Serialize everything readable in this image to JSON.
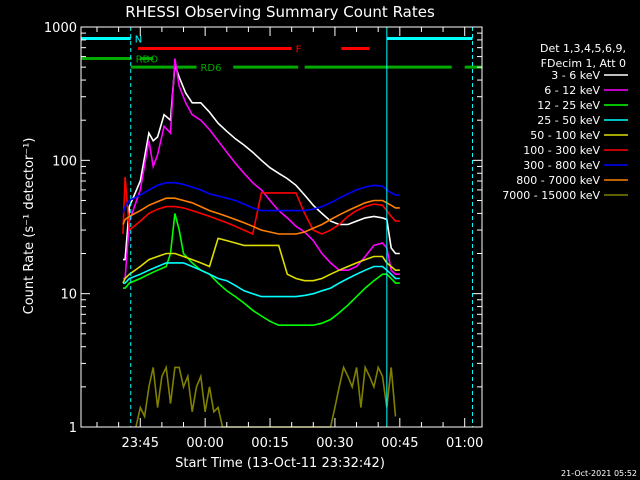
{
  "chart_data": {
    "type": "line",
    "title": "RHESSI Observing Summary Count Rates",
    "xlabel": "Start Time (13-Oct-11 23:32:42)",
    "ylabel": "Count Rate (s⁻¹ detector⁻¹)",
    "footer": "21-Oct-2021 05:52",
    "yscale": "log",
    "ylim": [
      1,
      1000
    ],
    "xlim_minutes": [
      -13.7,
      79.0
    ],
    "x_unit": "minutes after 23:45",
    "xticks": [
      {
        "label": "23:45",
        "value": 0
      },
      {
        "label": "00:00",
        "value": 15
      },
      {
        "label": "00:15",
        "value": 30
      },
      {
        "label": "00:30",
        "value": 45
      },
      {
        "label": "00:45",
        "value": 60
      },
      {
        "label": "01:00",
        "value": 75
      }
    ],
    "yticks": [
      {
        "label": "1",
        "value": 1
      },
      {
        "label": "10",
        "value": 10
      },
      {
        "label": "100",
        "value": 100
      },
      {
        "label": "1000",
        "value": 1000
      }
    ],
    "legend": {
      "placement": "right",
      "header": [
        "Det 1,3,4,5,6,9,",
        "FDecim 1, Att 0"
      ]
    },
    "flags": [
      {
        "name": "N",
        "color": "#00ffff",
        "y": 820,
        "segments": [
          [
            -13.7,
            -2.2
          ],
          [
            57.0,
            76.8
          ]
        ]
      },
      {
        "name": "F",
        "color": "#ff0000",
        "y": 690,
        "segments": [
          [
            -0.5,
            35.0
          ],
          [
            46.5,
            53.0
          ]
        ]
      },
      {
        "name": "RDO",
        "color": "#00aa00",
        "y": 580,
        "segments": [
          [
            -13.7,
            -2.0
          ],
          [
            0.0,
            3.0
          ]
        ]
      },
      {
        "name": "RD6",
        "color": "#00aa00",
        "y": 500,
        "segments": [
          [
            -2.2,
            13.0
          ],
          [
            21.5,
            36.5
          ],
          [
            38.0,
            72.0
          ],
          [
            75.0,
            79.0
          ]
        ]
      }
    ],
    "vlines": [
      {
        "x": -13.7,
        "color": "#00ffff",
        "style": "solid"
      },
      {
        "x": -2.2,
        "color": "#00ffff",
        "style": "dashed"
      },
      {
        "x": 57.0,
        "color": "#00ffff",
        "style": "solid"
      },
      {
        "x": 76.8,
        "color": "#00ffff",
        "style": "dashed"
      }
    ],
    "series": [
      {
        "name": "3 - 6 keV",
        "color": "#ffffff",
        "x": [
          -4,
          -3.5,
          -2.5,
          0,
          2,
          3,
          4,
          5.5,
          7,
          8,
          9,
          10.5,
          12,
          14,
          16,
          18,
          20,
          22,
          24,
          26,
          28,
          30,
          32,
          34,
          36,
          38,
          40,
          42,
          44,
          46,
          48,
          50,
          52,
          54,
          56,
          57,
          58,
          59,
          60
        ],
        "y": [
          18,
          18,
          45,
          70,
          160,
          140,
          150,
          220,
          200,
          520,
          420,
          320,
          270,
          270,
          230,
          190,
          165,
          145,
          130,
          115,
          100,
          88,
          80,
          73,
          65,
          55,
          46,
          40,
          35,
          33,
          33,
          35,
          37,
          38,
          37,
          36,
          22,
          20,
          20
        ]
      },
      {
        "name": "6 - 12 keV",
        "color": "#ff00ff",
        "x": [
          -4,
          -3.5,
          -2.5,
          0,
          2,
          3,
          4,
          5.5,
          7,
          8,
          9,
          10.5,
          12,
          14,
          16,
          18,
          20,
          22,
          24,
          26,
          28,
          30,
          32,
          34,
          36,
          38,
          40,
          42,
          44,
          46,
          48,
          50,
          52,
          54,
          56,
          57,
          58,
          59,
          60
        ],
        "y": [
          13,
          13,
          35,
          60,
          140,
          90,
          110,
          180,
          160,
          580,
          360,
          270,
          220,
          200,
          170,
          140,
          115,
          95,
          80,
          68,
          60,
          50,
          42,
          37,
          32,
          29,
          25,
          20,
          17,
          15,
          15,
          16,
          19,
          23,
          24,
          22,
          15,
          14,
          14
        ]
      },
      {
        "name": "12 - 25 keV",
        "color": "#00ff00",
        "x": [
          -4,
          -3.5,
          -2.5,
          0,
          2,
          4,
          6,
          7,
          8,
          9,
          10,
          12,
          14,
          16,
          18,
          20,
          22,
          24,
          26,
          28,
          30,
          32,
          34,
          36,
          38,
          40,
          42,
          44,
          46,
          48,
          50,
          52,
          54,
          56,
          57,
          58,
          59,
          60
        ],
        "y": [
          11,
          11,
          12,
          13,
          14,
          15,
          16,
          20,
          40,
          30,
          20,
          17,
          15,
          14,
          12,
          10.5,
          9.5,
          8.5,
          7.5,
          6.8,
          6.2,
          5.8,
          5.8,
          5.8,
          5.8,
          5.8,
          6.0,
          6.4,
          7.2,
          8.2,
          9.5,
          11,
          12.5,
          14,
          14,
          13,
          12,
          12
        ]
      },
      {
        "name": "25 - 50 keV",
        "color": "#00ffff",
        "x": [
          -4,
          -3.5,
          -2.5,
          0,
          2,
          4,
          6,
          8,
          10,
          12,
          14,
          16,
          18,
          20,
          22,
          24,
          26,
          28,
          30,
          32,
          34,
          36,
          38,
          40,
          42,
          44,
          46,
          48,
          50,
          52,
          54,
          56,
          57,
          58,
          59,
          60
        ],
        "y": [
          12,
          12,
          13,
          14,
          15,
          16,
          17,
          17,
          17,
          16,
          15,
          14,
          13,
          12.5,
          11.5,
          10.5,
          10,
          9.5,
          9.5,
          9.5,
          9.5,
          9.5,
          9.7,
          10,
          10.5,
          11,
          12,
          13,
          14,
          15,
          16,
          16,
          15,
          14,
          13,
          13
        ]
      },
      {
        "name": "50 - 100 keV",
        "color": "#dddd00",
        "x": [
          -4,
          -3.5,
          -2.5,
          0,
          2,
          4,
          6,
          8,
          10,
          12,
          14,
          16,
          18,
          20,
          22,
          24,
          26,
          28,
          30,
          32,
          34,
          36,
          38,
          40,
          42,
          44,
          46,
          48,
          50,
          52,
          54,
          56,
          57,
          58,
          59,
          60
        ],
        "y": [
          12,
          13,
          14,
          16,
          18,
          19,
          20,
          20,
          19,
          18,
          17,
          16,
          26,
          25,
          24,
          23,
          23,
          23,
          23,
          23,
          14,
          13,
          12.5,
          12.5,
          13,
          14,
          15,
          16,
          17,
          18,
          19,
          19,
          17,
          16,
          15,
          15
        ]
      },
      {
        "name": "100 - 300 keV",
        "color": "#ff0000",
        "x": [
          -4,
          -3.5,
          -2.5,
          0,
          2,
          4,
          6,
          8,
          10,
          12,
          14,
          16,
          18,
          20,
          22,
          24,
          26,
          28,
          30,
          32,
          34,
          36,
          38,
          40,
          42,
          44,
          46,
          48,
          50,
          52,
          54,
          56,
          57,
          58,
          59,
          60
        ],
        "y": [
          28,
          75,
          30,
          35,
          40,
          43,
          45,
          45,
          44,
          42,
          40,
          38,
          36,
          34,
          32,
          30,
          28,
          57,
          57,
          57,
          57,
          57,
          40,
          30,
          28,
          30,
          33,
          38,
          42,
          45,
          47,
          46,
          42,
          38,
          35,
          35
        ]
      },
      {
        "name": "300 - 800 keV",
        "color": "#0000ff",
        "x": [
          -4,
          -3.5,
          -2.5,
          0,
          2,
          4,
          6,
          8,
          10,
          12,
          14,
          16,
          18,
          20,
          22,
          24,
          26,
          28,
          30,
          32,
          34,
          36,
          38,
          40,
          42,
          44,
          46,
          48,
          50,
          52,
          54,
          56,
          57,
          58,
          59,
          60
        ],
        "y": [
          40,
          45,
          50,
          55,
          60,
          65,
          68,
          68,
          66,
          63,
          60,
          56,
          54,
          52,
          50,
          47,
          44,
          42,
          42,
          42,
          42,
          42,
          42,
          43,
          45,
          48,
          52,
          56,
          60,
          63,
          65,
          64,
          60,
          57,
          55,
          55
        ]
      },
      {
        "name": "800 - 7000 keV",
        "color": "#ff8000",
        "x": [
          -4,
          -3.5,
          -2.5,
          0,
          2,
          4,
          6,
          8,
          10,
          12,
          14,
          16,
          18,
          20,
          22,
          24,
          26,
          28,
          30,
          32,
          34,
          36,
          38,
          40,
          42,
          44,
          46,
          48,
          50,
          52,
          54,
          56,
          57,
          58,
          59,
          60
        ],
        "y": [
          33,
          36,
          38,
          42,
          46,
          49,
          52,
          52,
          50,
          48,
          45,
          42,
          40,
          38,
          36,
          34,
          32,
          30,
          29,
          28,
          28,
          28,
          29,
          31,
          33,
          36,
          39,
          42,
          45,
          48,
          50,
          50,
          48,
          46,
          44,
          44
        ]
      },
      {
        "name": "7000 - 15000 keV",
        "color": "#808000",
        "x": [
          -1,
          0,
          1,
          2,
          3,
          4,
          5,
          6,
          7,
          8,
          9,
          10,
          11,
          12,
          13,
          14,
          15,
          16,
          17,
          18,
          19,
          44,
          45,
          46,
          47,
          48,
          49,
          50,
          51,
          52,
          53,
          54,
          55,
          56,
          57,
          58,
          59
        ],
        "y": [
          1,
          1.4,
          1.2,
          2,
          2.8,
          1.4,
          2.4,
          2.8,
          1.5,
          2.8,
          2.8,
          2.0,
          2.4,
          1.3,
          2.0,
          2.4,
          1.3,
          2.0,
          1.3,
          1.4,
          1,
          1,
          1.4,
          2.0,
          2.8,
          2.4,
          2.0,
          2.8,
          1.4,
          2.8,
          2.4,
          2.0,
          2.8,
          2.4,
          1.4,
          2.8,
          1.2
        ]
      }
    ]
  }
}
